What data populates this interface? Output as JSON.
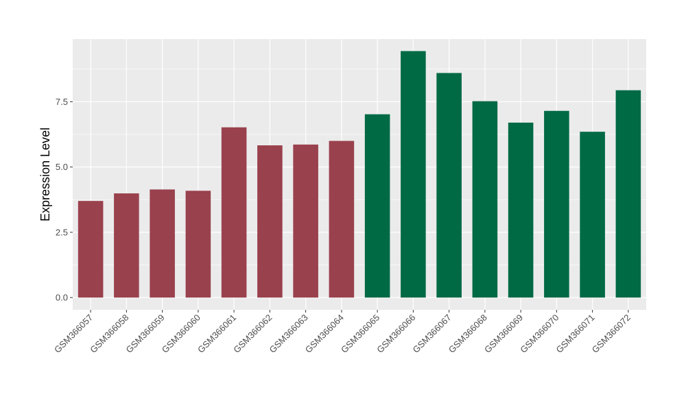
{
  "chart_data": {
    "type": "bar",
    "title": "",
    "xlabel": "",
    "ylabel": "Expression Level",
    "categories": [
      "GSM366057",
      "GSM366058",
      "GSM366059",
      "GSM366060",
      "GSM366061",
      "GSM366062",
      "GSM366063",
      "GSM366064",
      "GSM366065",
      "GSM366066",
      "GSM366067",
      "GSM366068",
      "GSM366069",
      "GSM366070",
      "GSM366071",
      "GSM366072"
    ],
    "values": [
      3.7,
      3.99,
      4.14,
      4.09,
      6.52,
      5.83,
      5.86,
      6.0,
      7.02,
      9.44,
      8.6,
      7.52,
      6.7,
      7.15,
      6.35,
      7.94
    ],
    "group_colors": [
      "#9a414e",
      "#9a414e",
      "#9a414e",
      "#9a414e",
      "#9a414e",
      "#9a414e",
      "#9a414e",
      "#9a414e",
      "#006a45",
      "#006a45",
      "#006a45",
      "#006a45",
      "#006a45",
      "#006a45",
      "#006a45",
      "#006a45"
    ],
    "ylim": [
      -0.47,
      9.9
    ],
    "yticks": [
      0.0,
      2.5,
      5.0,
      7.5
    ],
    "ytick_labels": [
      "0.0",
      "2.5",
      "5.0",
      "7.5"
    ],
    "grid": true,
    "legend": "none",
    "colors": {
      "panel_background": "#ebebeb",
      "grid_major": "#ffffff",
      "axis_text": "#4d4d4d",
      "axis_title": "#000000"
    }
  }
}
